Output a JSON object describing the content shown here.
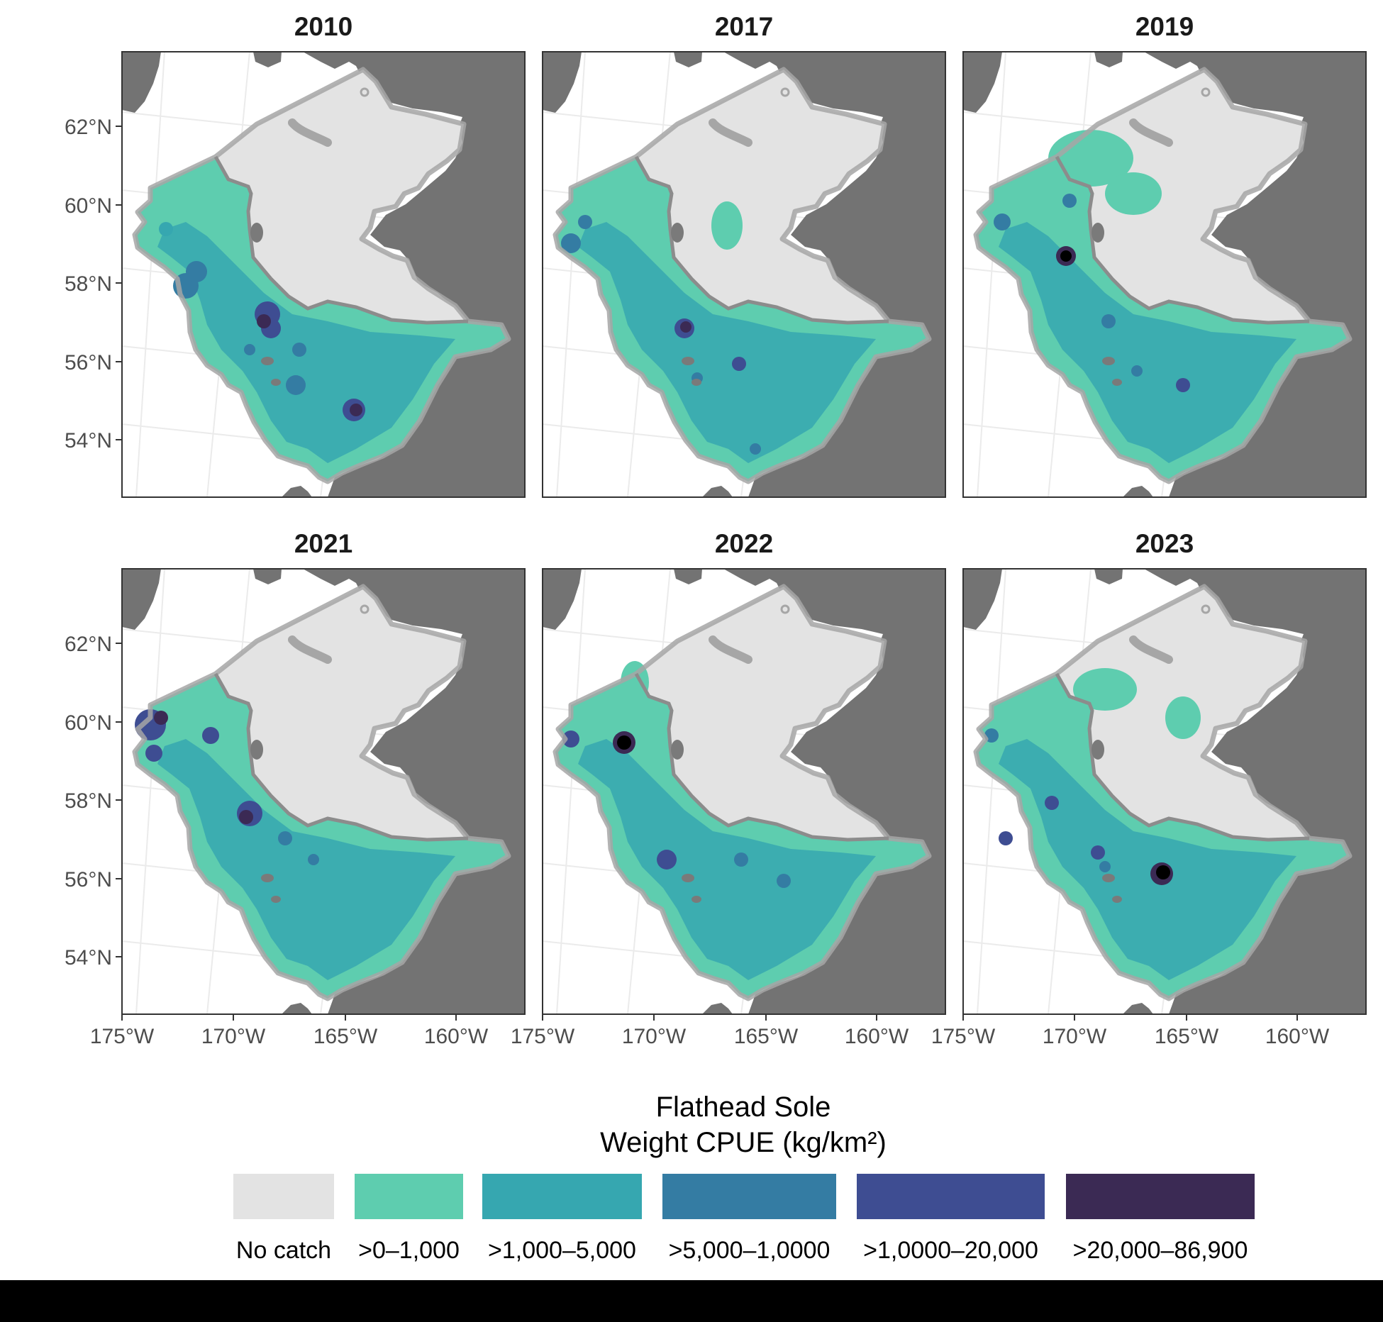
{
  "panels": [
    {
      "year": "2010"
    },
    {
      "year": "2017"
    },
    {
      "year": "2019"
    },
    {
      "year": "2021"
    },
    {
      "year": "2022"
    },
    {
      "year": "2023"
    }
  ],
  "y_axis_ticks": [
    "62°N",
    "60°N",
    "58°N",
    "56°N",
    "54°N"
  ],
  "x_axis_ticks": [
    "175°W",
    "170°W",
    "165°W",
    "160°W"
  ],
  "legend": {
    "title_line1": "Flathead Sole",
    "title_line2": "Weight CPUE (kg/km²)",
    "items": [
      {
        "label": "No catch",
        "color": "#e3e3e3"
      },
      {
        "label": ">0–1,000",
        "color": "#5ecdaf"
      },
      {
        "label": ">1,000–5,000",
        "color": "#36a7b0"
      },
      {
        "label": ">5,000–1,0000",
        "color": "#347ca3"
      },
      {
        "label": ">1,0000–20,000",
        "color": "#3e4d92"
      },
      {
        "label": ">20,000–86,900",
        "color": "#3b2a54"
      }
    ]
  },
  "colors": {
    "land": "#737373",
    "survey_outline": "#a6a6a6",
    "frame": "#333333"
  }
}
